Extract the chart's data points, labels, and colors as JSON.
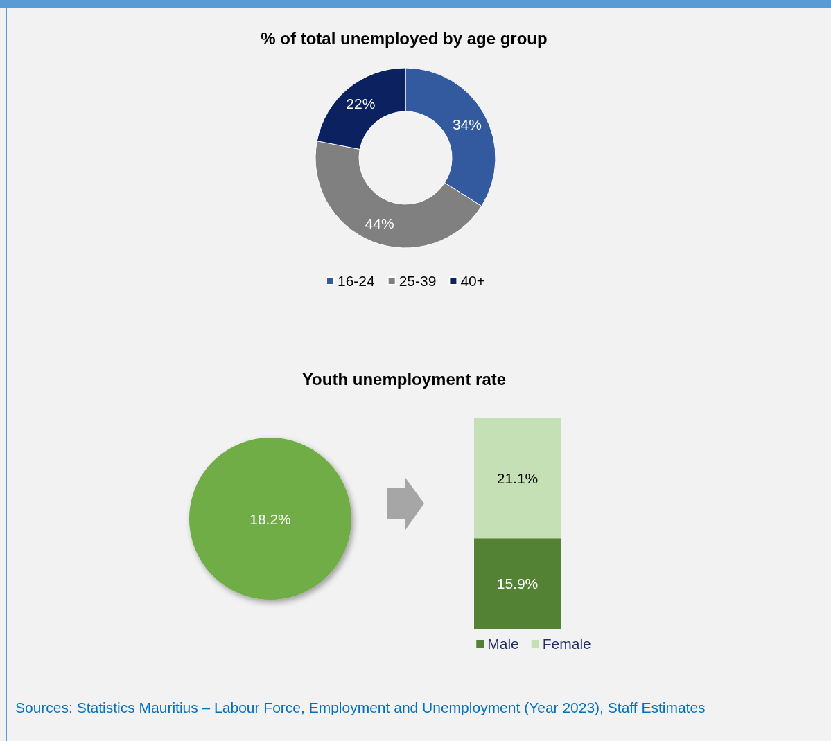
{
  "chart_data": [
    {
      "type": "donut",
      "title": "% of total unemployed by age group",
      "categories": [
        "16-24",
        "25-39",
        "40+"
      ],
      "values": [
        34,
        44,
        22
      ],
      "colors": [
        "#335a9f",
        "#808080",
        "#0c2260"
      ],
      "value_labels": [
        "34%",
        "44%",
        "22%"
      ],
      "legend": "bottom"
    },
    {
      "type": "other",
      "title": "Youth unemployment rate",
      "categories": [
        null
      ],
      "values": [
        18.2
      ],
      "value_labels": [
        "18.2%"
      ],
      "colors": [
        "#70ad47"
      ]
    },
    {
      "type": "bar",
      "stacked": true,
      "categories": [
        null
      ],
      "series": [
        {
          "name": "Male",
          "color": "#548235",
          "values": [
            15.9
          ],
          "value_labels": [
            "15.9%"
          ]
        },
        {
          "name": "Female",
          "color": "#c5e0b4",
          "values": [
            21.1
          ],
          "value_labels": [
            "21.1%"
          ]
        }
      ],
      "legend": "bottom",
      "annotations": [
        "Sources: Statistics Mauritius – Labour Force, Employment and Unemployment (Year 2023), Staff Estimates"
      ]
    }
  ]
}
